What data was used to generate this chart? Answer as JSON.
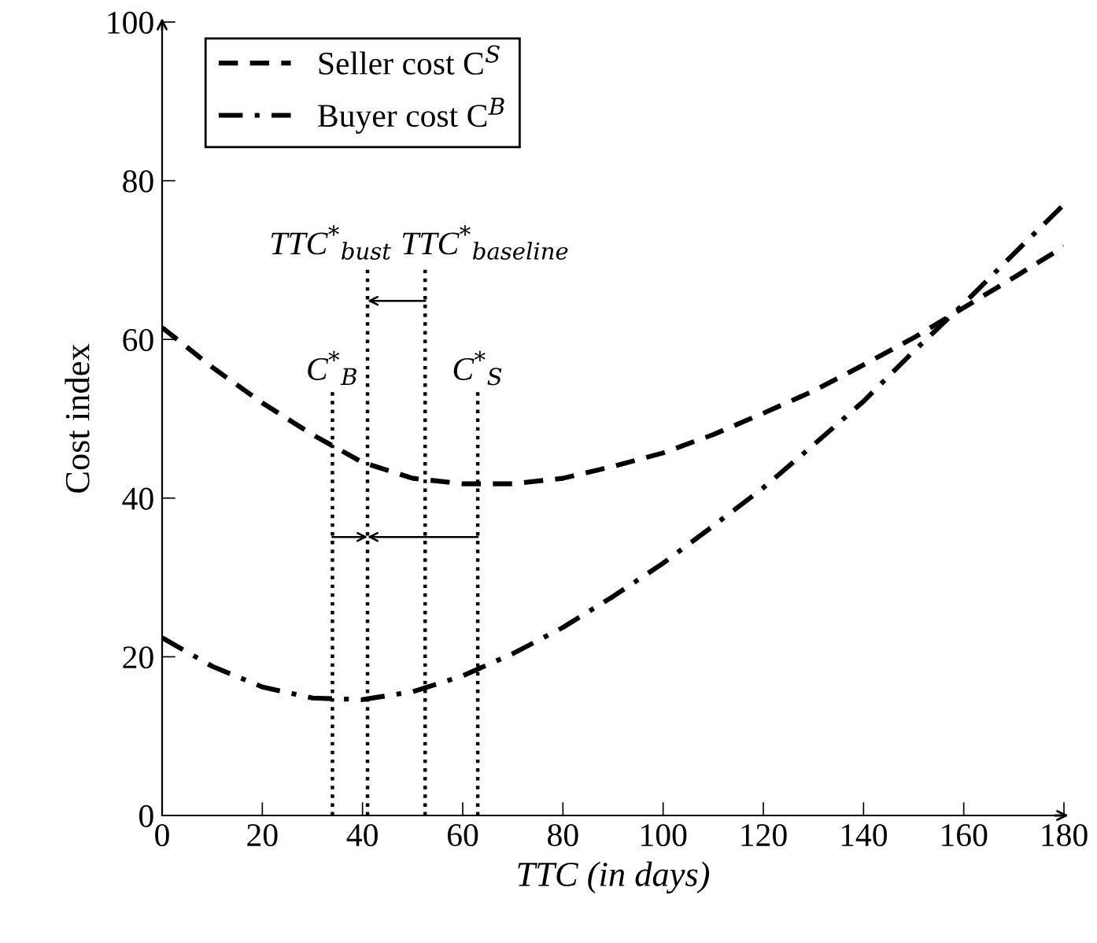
{
  "chart_data": {
    "type": "line",
    "xlabel": "TTC (in days)",
    "ylabel": "Cost index",
    "x": [
      0,
      10,
      20,
      30,
      40,
      50,
      60,
      70,
      80,
      90,
      100,
      110,
      120,
      130,
      140,
      150,
      160,
      170,
      180
    ],
    "xlim": [
      0,
      180
    ],
    "xticks": [
      0,
      20,
      40,
      60,
      80,
      100,
      120,
      140,
      160,
      180
    ],
    "ylim": [
      0,
      100
    ],
    "yticks": [
      0,
      20,
      40,
      60,
      80,
      100
    ],
    "grid": false,
    "legend": "top left",
    "marker": "none",
    "series": [
      {
        "name": "Seller cost C$^{S}$",
        "color": "#000000",
        "line_style": "dashed",
        "values": [
          61.5,
          56.5,
          52,
          48,
          44.5,
          42.5,
          41.8,
          41.8,
          42.5,
          44,
          45.7,
          48,
          50.7,
          53.5,
          56.8,
          60.2,
          64,
          67.8,
          71.7
        ]
      },
      {
        "name": "Buyer cost C$^{B}$",
        "color": "#000000",
        "line_style": "dashdot",
        "values": [
          22.4,
          18.8,
          16.2,
          14.8,
          14.6,
          15.6,
          17.6,
          20.4,
          23.7,
          27.6,
          31.8,
          36.5,
          41.3,
          46.7,
          52.2,
          58.5,
          64.5,
          70.8,
          77
        ]
      },
      {
        "name": "C$^{*}$$_{B}$",
        "color": "#000000",
        "line_style": "dotted",
        "x": [
          34,
          34
        ],
        "values": [
          0,
          54
        ]
      },
      {
        "name": "TTC$^{*}$$_{bust}$",
        "color": "#000000",
        "line_style": "dotted",
        "x": [
          41,
          41
        ],
        "values": [
          0,
          69
        ]
      },
      {
        "name": "TTC$^{*}$$_{baseline}$",
        "color": "#000000",
        "line_style": "dotted",
        "x": [
          52.5,
          52.5
        ],
        "values": [
          0,
          69
        ]
      },
      {
        "name": "C$^{*}$$_{S}$",
        "color": "#000000",
        "line_style": "dotted",
        "x": [
          63,
          63
        ],
        "values": [
          0,
          54
        ]
      }
    ]
  }
}
